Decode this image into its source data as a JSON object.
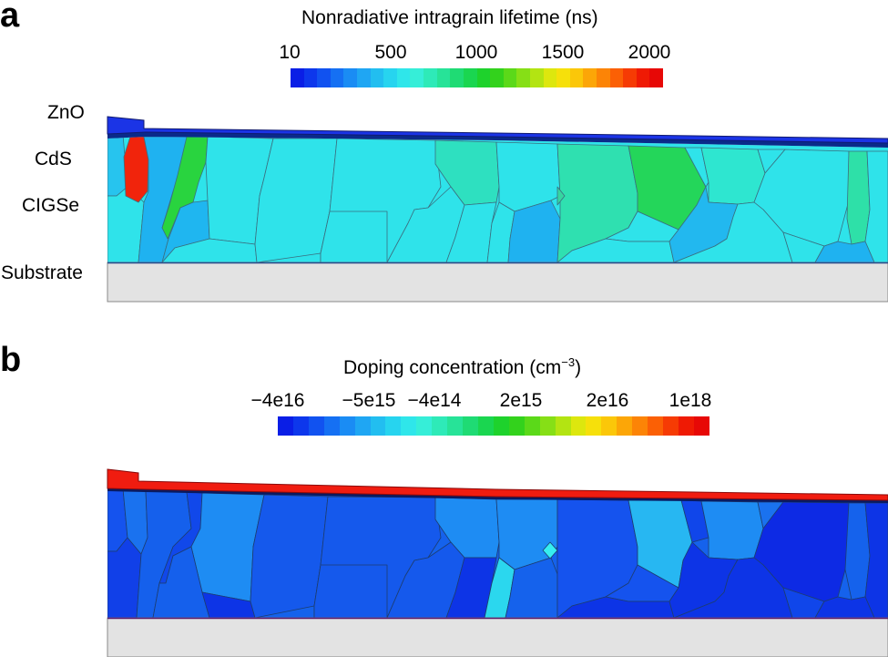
{
  "panel_a": {
    "letter": "a",
    "colorbar_title": "Nonradiative intragrain lifetime (ns)",
    "ticks": [
      "10",
      "500",
      "1000",
      "1500",
      "2000"
    ],
    "layer_labels": {
      "zno": "ZnO",
      "cds": "CdS",
      "cigse": "CIGSe",
      "substrate": "Substrate"
    }
  },
  "panel_b": {
    "letter": "b",
    "colorbar_title_main": "Doping concentration (cm",
    "colorbar_title_sup": "−3",
    "colorbar_title_end": ")",
    "ticks": [
      "−4e16",
      "−5e15",
      "−4e14",
      "2e15",
      "2e16",
      "1e18"
    ]
  },
  "colormap": [
    "#0a1ee6",
    "#0d37ec",
    "#1152f0",
    "#1570f3",
    "#1a8cf4",
    "#1fa6f3",
    "#22bef0",
    "#27d4ef",
    "#2fe6ea",
    "#36eed8",
    "#2eeab8",
    "#27e398",
    "#1fdb74",
    "#1ad650",
    "#1ed22c",
    "#33d21c",
    "#5bd919",
    "#86df16",
    "#b3e412",
    "#dde70e",
    "#f6e00b",
    "#fbc709",
    "#fca607",
    "#fc8406",
    "#fb6005",
    "#f63b04",
    "#ef1a04",
    "#e70806"
  ]
}
